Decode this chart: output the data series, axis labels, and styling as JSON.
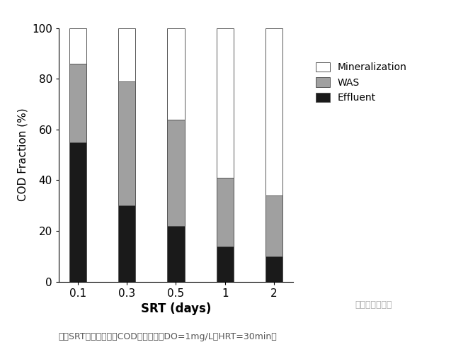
{
  "categories": [
    "0.1",
    "0.3",
    "0.5",
    "1",
    "2"
  ],
  "effluent": [
    55,
    30,
    22,
    14,
    10
  ],
  "was": [
    31,
    49,
    42,
    27,
    24
  ],
  "mineralization": [
    14,
    21,
    36,
    59,
    66
  ],
  "colors": {
    "effluent": "#1a1a1a",
    "was": "#a0a0a0",
    "mineralization": "#ffffff"
  },
  "edgecolor": "#555555",
  "ylabel": "COD Fraction (%)",
  "xlabel": "SRT (days)",
  "ylim": [
    0,
    100
  ],
  "yticks": [
    0,
    20,
    40,
    60,
    80,
    100
  ],
  "legend_labels": [
    "Mineralization",
    "WAS",
    "Effluent"
  ],
  "bar_width": 0.35,
  "caption": "不同SRT条件下，进水COD形态转化（DO=1mg/L，HRT=30min）",
  "watermark": "水业碳中和资讯",
  "background_color": "#ffffff"
}
